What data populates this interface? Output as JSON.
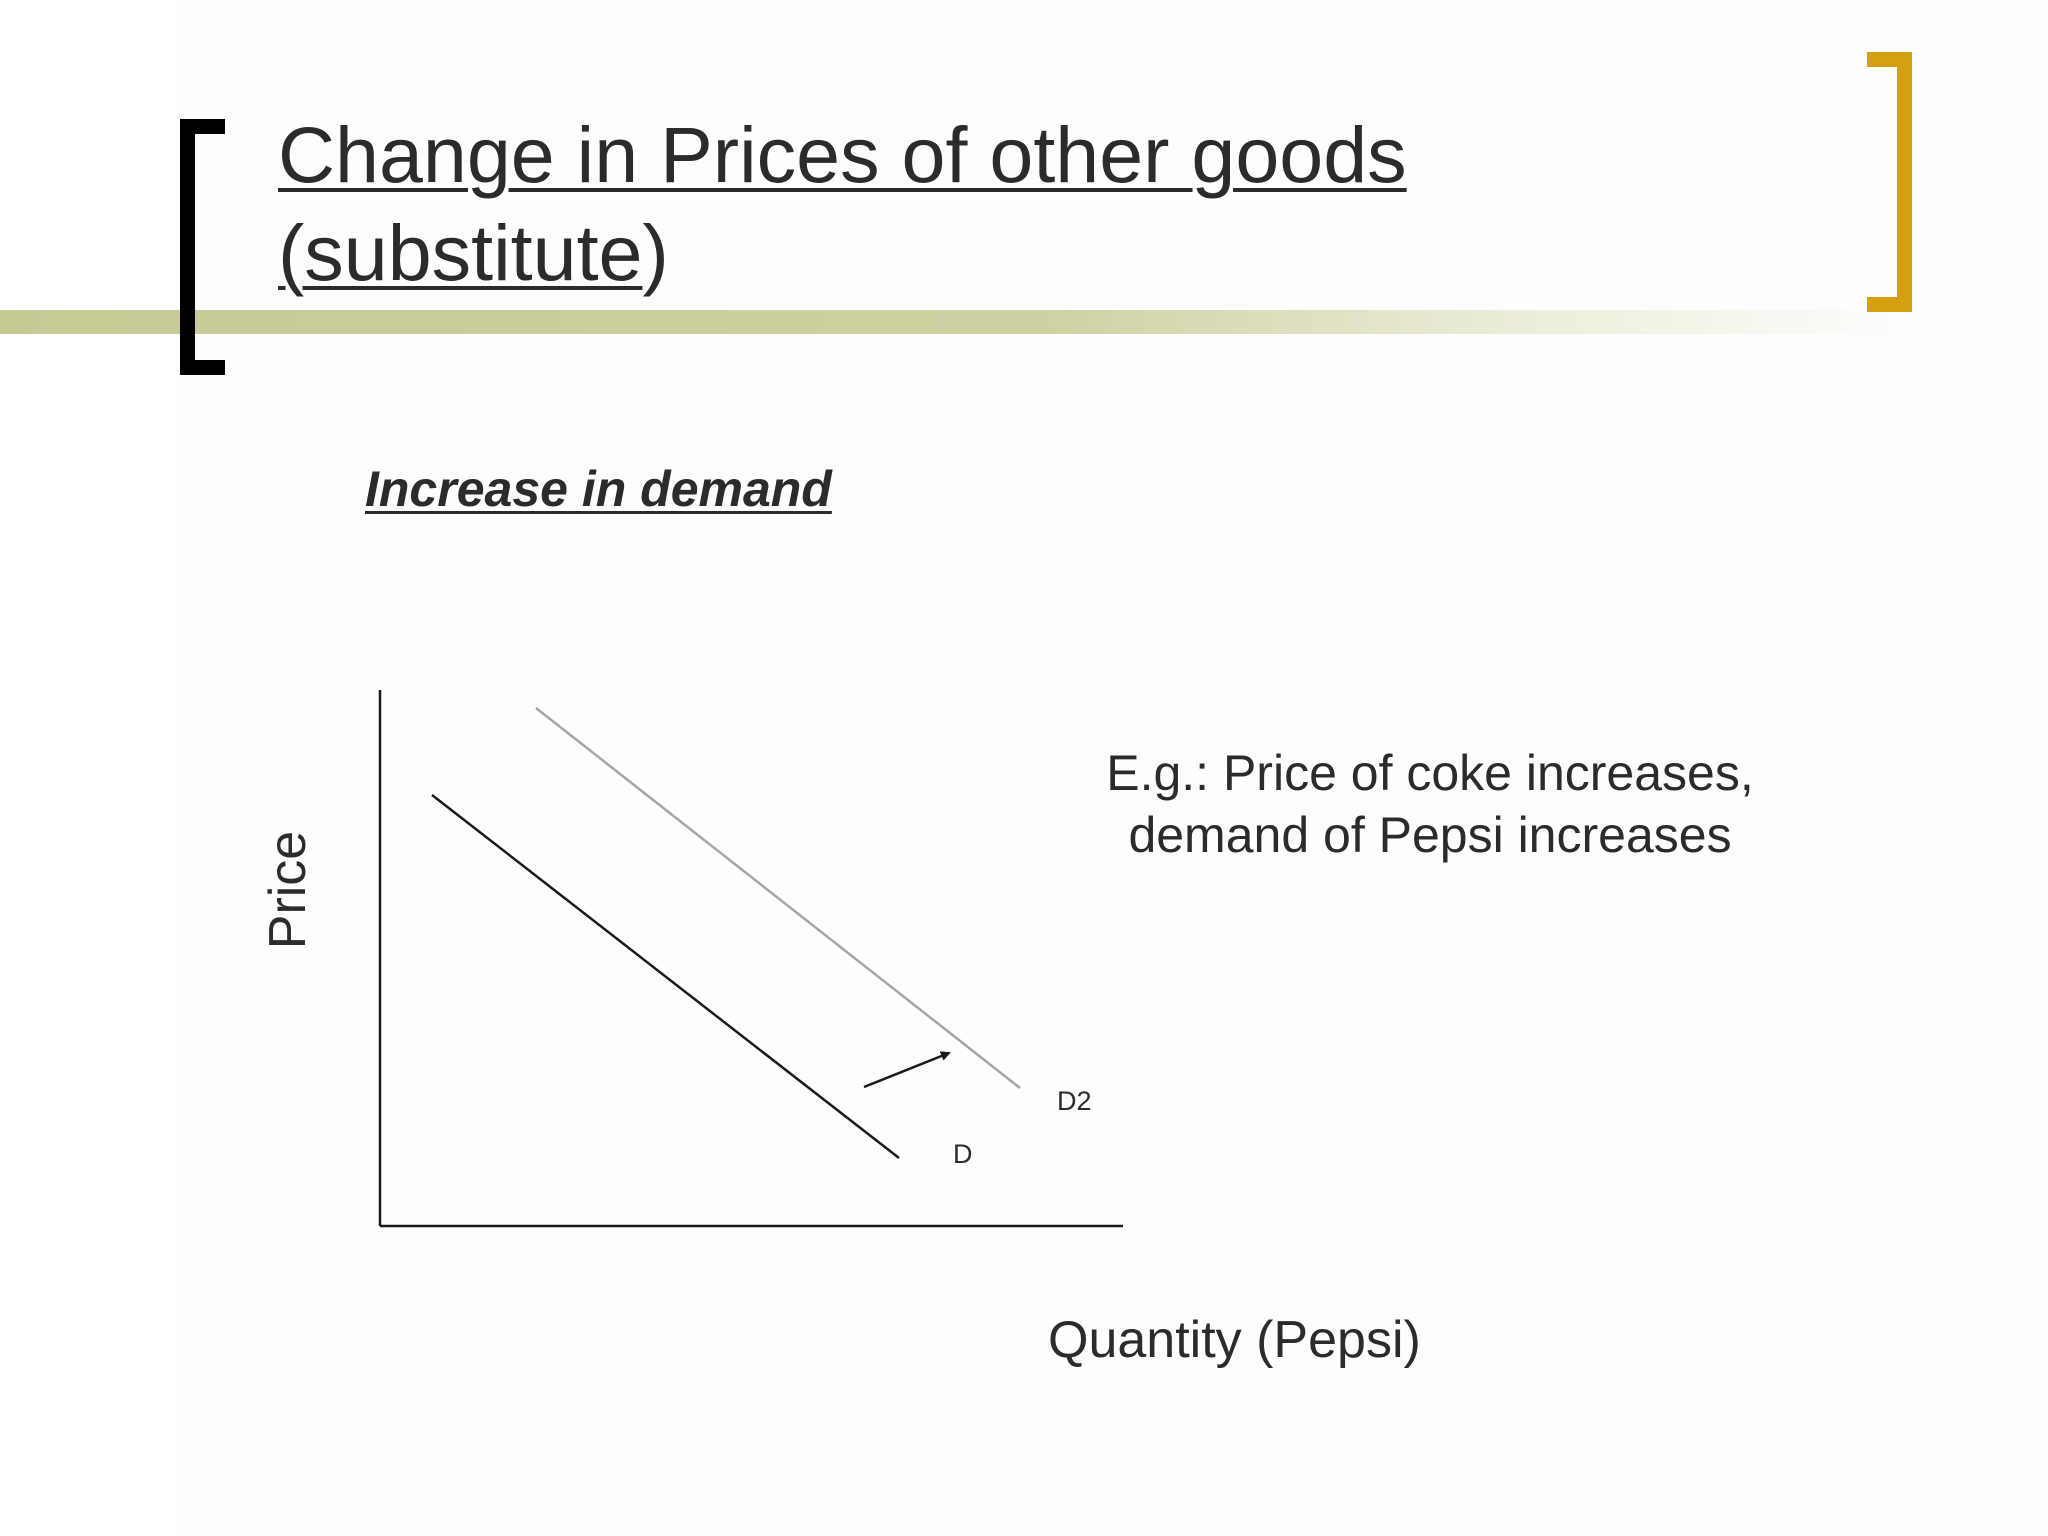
{
  "slide": {
    "title_line1": "Change in Prices of other goods",
    "title_line2_underlined": "(substitute",
    "title_line2_rest": ")",
    "subtitle": "Increase in demand",
    "example_line1": "E.g.: Price of coke increases,",
    "example_line2": "demand of Pepsi increases"
  },
  "diagram": {
    "y_axis_label": "Price",
    "x_axis_label": "Quantity (Pepsi)",
    "curves": [
      {
        "name": "D",
        "color": "#1a1a1a"
      },
      {
        "name": "D2",
        "color": "#a6a6a6"
      }
    ],
    "shift_direction": "right"
  },
  "colors": {
    "left_bracket": "#000000",
    "right_bracket": "#d4a010",
    "accent_bar": "#c7c995"
  }
}
